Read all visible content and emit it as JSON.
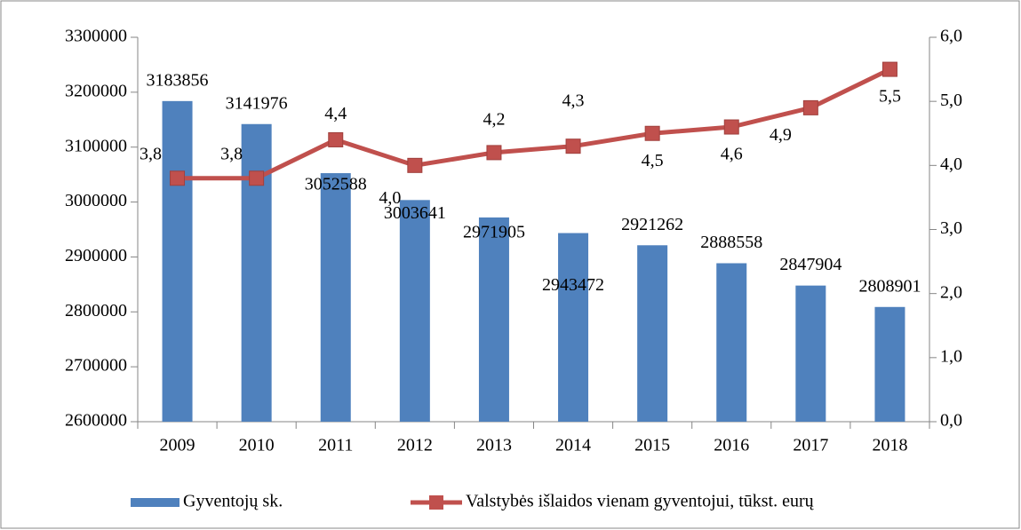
{
  "chart_data": {
    "type": "bar_line",
    "categories": [
      "2009",
      "2010",
      "2011",
      "2012",
      "2013",
      "2014",
      "2015",
      "2016",
      "2017",
      "2018"
    ],
    "series": [
      {
        "name": "Gyventojų sk.",
        "type": "bar",
        "color": "#4f81bd",
        "values": [
          3183856,
          3141976,
          3052588,
          3003641,
          2971905,
          2943472,
          2921262,
          2888558,
          2847904,
          2808901
        ]
      },
      {
        "name": "Valstybės išlaidos vienam gyventojui, tūkst. eurų",
        "type": "line",
        "axis": "y2",
        "color": "#c0504d",
        "values": [
          3.8,
          3.8,
          4.4,
          4.0,
          4.2,
          4.3,
          4.5,
          4.6,
          4.9,
          5.5
        ],
        "value_labels": [
          "3,8",
          "3,8",
          "4,4",
          "4,0",
          "4,2",
          "4,3",
          "4,5",
          "4,6",
          "4,9",
          "5,5"
        ]
      }
    ],
    "ylim": [
      2600000,
      3300000
    ],
    "yticks": [
      2600000,
      2700000,
      2800000,
      2900000,
      3000000,
      3100000,
      3200000,
      3300000
    ],
    "y2lim": [
      0,
      6
    ],
    "y2ticks": [
      {
        "value": 0,
        "label": "0,0"
      },
      {
        "value": 1,
        "label": "1,0"
      },
      {
        "value": 2,
        "label": "2,0"
      },
      {
        "value": 3,
        "label": "3,0"
      },
      {
        "value": 4,
        "label": "4,0"
      },
      {
        "value": 5,
        "label": "5,0"
      },
      {
        "value": 6,
        "label": "6,0"
      }
    ],
    "grid": false,
    "legend": "bottom"
  }
}
